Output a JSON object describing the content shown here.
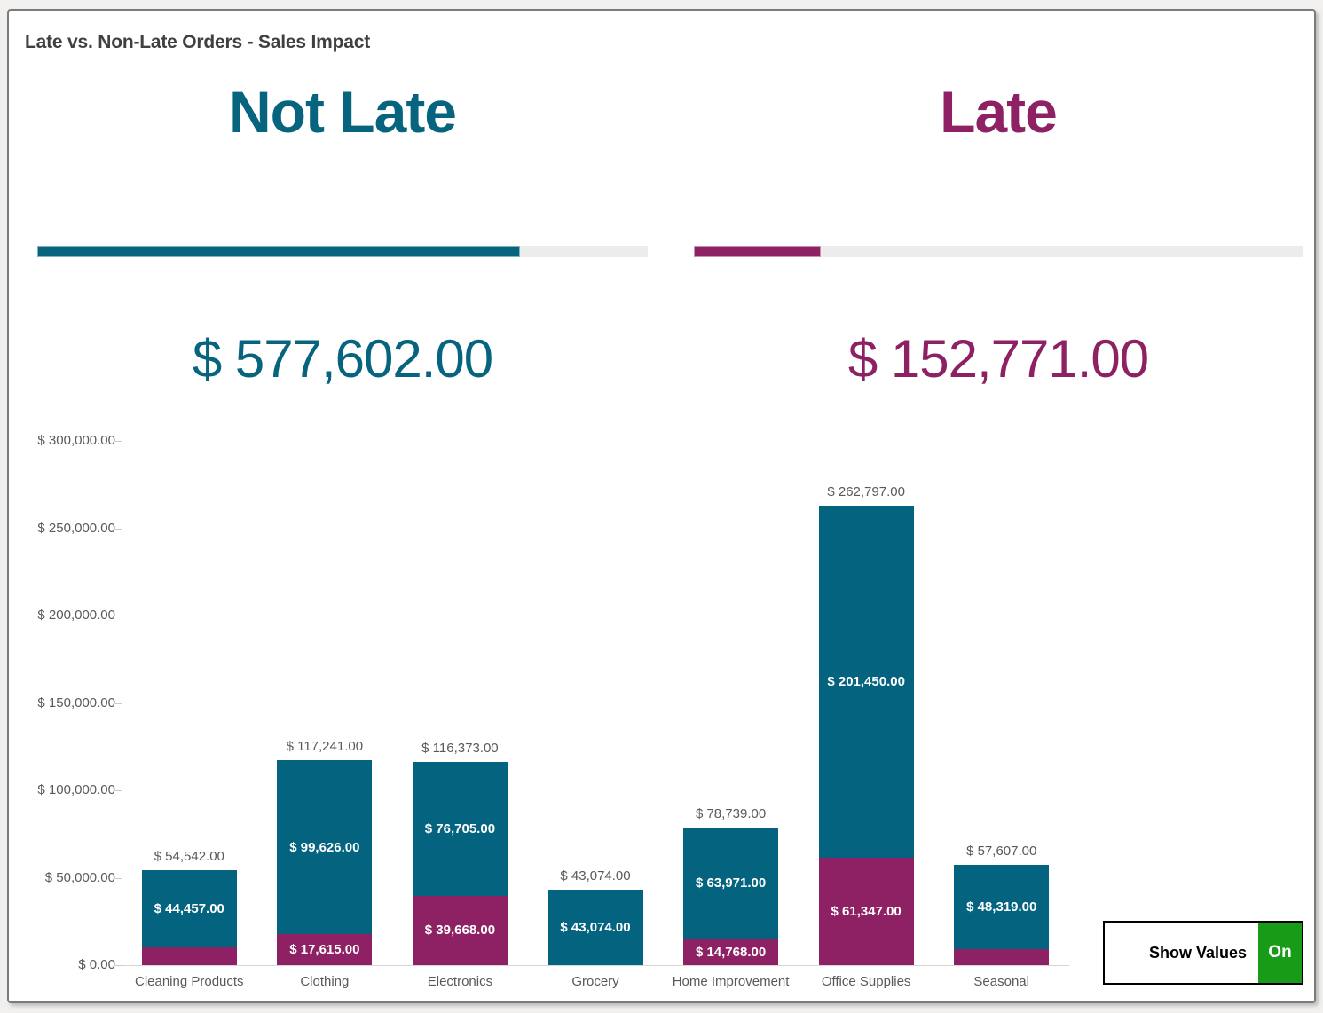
{
  "window": {
    "title": "Late vs. Non-Late Orders - Sales Impact"
  },
  "kpis": [
    {
      "label": "Not Late",
      "value": "$ 577,602.00",
      "color": "#06647f",
      "progress": 0.791
    },
    {
      "label": "Late",
      "value": "$ 152,771.00",
      "color": "#8e2163",
      "progress": 0.209
    }
  ],
  "chart_data": {
    "type": "bar",
    "stacked": true,
    "title": "Late vs. Non-Late Orders - Sales Impact",
    "categories": [
      "Cleaning Products",
      "Clothing",
      "Electronics",
      "Grocery",
      "Home Improvement",
      "Office Supplies",
      "Seasonal"
    ],
    "series": [
      {
        "name": "Late",
        "color": "#8e2163",
        "values": [
          10085,
          17615,
          39668,
          0,
          14768,
          61347,
          9288
        ],
        "value_labels": [
          "",
          "$ 17,615.00",
          "$ 39,668.00",
          "",
          "$ 14,768.00",
          "$ 61,347.00",
          ""
        ]
      },
      {
        "name": "Not Late",
        "color": "#04647f",
        "values": [
          44457,
          99626,
          76705,
          43074,
          63971,
          201450,
          48319
        ],
        "value_labels": [
          "$ 44,457.00",
          "$ 99,626.00",
          "$ 76,705.00",
          "$ 43,074.00",
          "$ 63,971.00",
          "$ 201,450.00",
          "$ 48,319.00"
        ]
      }
    ],
    "totals": [
      54542,
      117241,
      116373,
      43074,
      78739,
      262797,
      57607
    ],
    "total_labels": [
      "$ 54,542.00",
      "$ 117,241.00",
      "$ 116,373.00",
      "$ 43,074.00",
      "$ 78,739.00",
      "$ 262,797.00",
      "$ 57,607.00"
    ],
    "y_ticks": [
      "$ 0.00",
      "$ 50,000.00",
      "$ 100,000.00",
      "$ 150,000.00",
      "$ 200,000.00",
      "$ 250,000.00",
      "$ 300,000.00"
    ],
    "ylim": [
      0,
      300000
    ],
    "grid": false,
    "legend": "none"
  },
  "toggle": {
    "label": "Show Values",
    "state": "On",
    "on_color": "#189c18"
  }
}
